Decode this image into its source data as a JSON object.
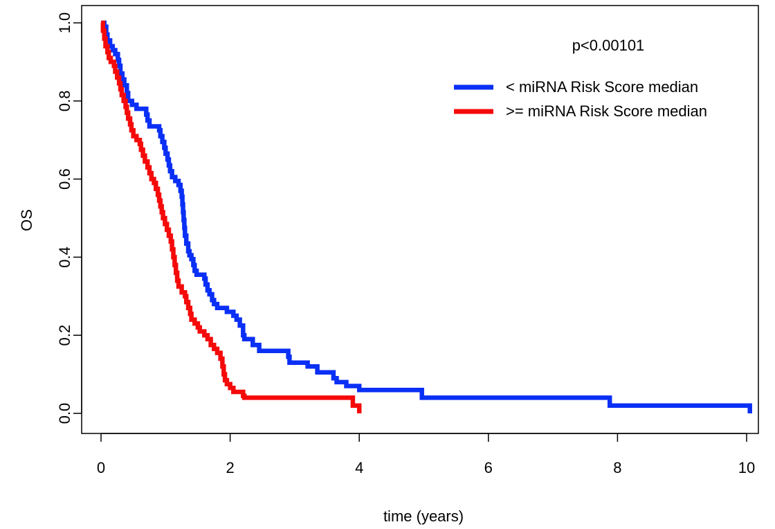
{
  "chart_data": {
    "type": "line",
    "xlabel": "time (years)",
    "ylabel": "OS",
    "xlim": [
      0,
      10
    ],
    "ylim": [
      0,
      1
    ],
    "x_ticks": [
      0,
      2,
      4,
      6,
      8,
      10
    ],
    "y_ticks": [
      0,
      0.2,
      0.4,
      0.6,
      0.8,
      1
    ],
    "x_tick_labels": [
      "0",
      "2",
      "4",
      "6",
      "8",
      "10"
    ],
    "y_tick_labels": [
      "0.0",
      "0.2",
      "0.4",
      "0.6",
      "0.8",
      "1.0"
    ],
    "grid": false,
    "legend_position": "top-right",
    "annotation": "p<0.00101",
    "series": [
      {
        "name": "< miRNA Risk Score median",
        "color": "#0a2ff5",
        "step": true,
        "points": [
          [
            0,
            1.0
          ],
          [
            0.05,
            0.99
          ],
          [
            0.08,
            0.97
          ],
          [
            0.1,
            0.955
          ],
          [
            0.14,
            0.94
          ],
          [
            0.18,
            0.93
          ],
          [
            0.22,
            0.92
          ],
          [
            0.26,
            0.905
          ],
          [
            0.28,
            0.89
          ],
          [
            0.3,
            0.87
          ],
          [
            0.33,
            0.855
          ],
          [
            0.36,
            0.84
          ],
          [
            0.4,
            0.82
          ],
          [
            0.42,
            0.8
          ],
          [
            0.48,
            0.79
          ],
          [
            0.55,
            0.78
          ],
          [
            0.7,
            0.765
          ],
          [
            0.72,
            0.75
          ],
          [
            0.75,
            0.735
          ],
          [
            0.9,
            0.725
          ],
          [
            0.92,
            0.71
          ],
          [
            0.95,
            0.695
          ],
          [
            0.98,
            0.68
          ],
          [
            1.0,
            0.665
          ],
          [
            1.03,
            0.65
          ],
          [
            1.05,
            0.635
          ],
          [
            1.07,
            0.62
          ],
          [
            1.1,
            0.605
          ],
          [
            1.15,
            0.595
          ],
          [
            1.2,
            0.585
          ],
          [
            1.23,
            0.57
          ],
          [
            1.25,
            0.555
          ],
          [
            1.26,
            0.535
          ],
          [
            1.27,
            0.515
          ],
          [
            1.28,
            0.495
          ],
          [
            1.29,
            0.475
          ],
          [
            1.3,
            0.455
          ],
          [
            1.32,
            0.435
          ],
          [
            1.35,
            0.415
          ],
          [
            1.37,
            0.405
          ],
          [
            1.4,
            0.395
          ],
          [
            1.43,
            0.38
          ],
          [
            1.45,
            0.365
          ],
          [
            1.48,
            0.355
          ],
          [
            1.6,
            0.345
          ],
          [
            1.62,
            0.33
          ],
          [
            1.65,
            0.315
          ],
          [
            1.68,
            0.305
          ],
          [
            1.72,
            0.29
          ],
          [
            1.75,
            0.28
          ],
          [
            1.8,
            0.27
          ],
          [
            1.95,
            0.26
          ],
          [
            2.0,
            0.26
          ],
          [
            2.05,
            0.25
          ],
          [
            2.1,
            0.24
          ],
          [
            2.15,
            0.225
          ],
          [
            2.2,
            0.2
          ],
          [
            2.22,
            0.19
          ],
          [
            2.35,
            0.175
          ],
          [
            2.45,
            0.16
          ],
          [
            2.9,
            0.145
          ],
          [
            2.92,
            0.13
          ],
          [
            3.2,
            0.12
          ],
          [
            3.35,
            0.105
          ],
          [
            3.6,
            0.09
          ],
          [
            3.65,
            0.08
          ],
          [
            3.8,
            0.07
          ],
          [
            4.0,
            0.06
          ],
          [
            4.97,
            0.04
          ],
          [
            7.88,
            0.02
          ],
          [
            10.0,
            0.02
          ],
          [
            10.05,
            0.0
          ]
        ]
      },
      {
        "name": ">= miRNA Risk Score median",
        "color": "#f50a0a",
        "step": true,
        "points": [
          [
            0,
            1.0
          ],
          [
            0.03,
            0.98
          ],
          [
            0.05,
            0.96
          ],
          [
            0.07,
            0.94
          ],
          [
            0.1,
            0.925
          ],
          [
            0.12,
            0.91
          ],
          [
            0.15,
            0.9
          ],
          [
            0.2,
            0.89
          ],
          [
            0.22,
            0.875
          ],
          [
            0.25,
            0.86
          ],
          [
            0.28,
            0.845
          ],
          [
            0.3,
            0.83
          ],
          [
            0.32,
            0.815
          ],
          [
            0.35,
            0.8
          ],
          [
            0.38,
            0.785
          ],
          [
            0.4,
            0.77
          ],
          [
            0.42,
            0.755
          ],
          [
            0.45,
            0.74
          ],
          [
            0.47,
            0.725
          ],
          [
            0.5,
            0.71
          ],
          [
            0.55,
            0.7
          ],
          [
            0.6,
            0.69
          ],
          [
            0.62,
            0.675
          ],
          [
            0.65,
            0.66
          ],
          [
            0.68,
            0.645
          ],
          [
            0.72,
            0.63
          ],
          [
            0.75,
            0.615
          ],
          [
            0.78,
            0.6
          ],
          [
            0.82,
            0.59
          ],
          [
            0.85,
            0.575
          ],
          [
            0.88,
            0.56
          ],
          [
            0.9,
            0.545
          ],
          [
            0.92,
            0.53
          ],
          [
            0.94,
            0.515
          ],
          [
            0.96,
            0.5
          ],
          [
            0.99,
            0.485
          ],
          [
            1.02,
            0.47
          ],
          [
            1.05,
            0.455
          ],
          [
            1.08,
            0.44
          ],
          [
            1.1,
            0.42
          ],
          [
            1.12,
            0.4
          ],
          [
            1.14,
            0.38
          ],
          [
            1.16,
            0.36
          ],
          [
            1.18,
            0.34
          ],
          [
            1.2,
            0.325
          ],
          [
            1.25,
            0.31
          ],
          [
            1.3,
            0.3
          ],
          [
            1.32,
            0.285
          ],
          [
            1.35,
            0.27
          ],
          [
            1.38,
            0.255
          ],
          [
            1.4,
            0.24
          ],
          [
            1.45,
            0.23
          ],
          [
            1.5,
            0.22
          ],
          [
            1.53,
            0.21
          ],
          [
            1.6,
            0.2
          ],
          [
            1.65,
            0.19
          ],
          [
            1.7,
            0.175
          ],
          [
            1.75,
            0.165
          ],
          [
            1.8,
            0.155
          ],
          [
            1.85,
            0.14
          ],
          [
            1.88,
            0.12
          ],
          [
            1.9,
            0.1
          ],
          [
            1.92,
            0.085
          ],
          [
            1.95,
            0.075
          ],
          [
            2.0,
            0.065
          ],
          [
            2.05,
            0.055
          ],
          [
            2.2,
            0.045
          ],
          [
            2.22,
            0.04
          ],
          [
            3.9,
            0.02
          ],
          [
            4.0,
            0.0
          ]
        ]
      }
    ]
  }
}
